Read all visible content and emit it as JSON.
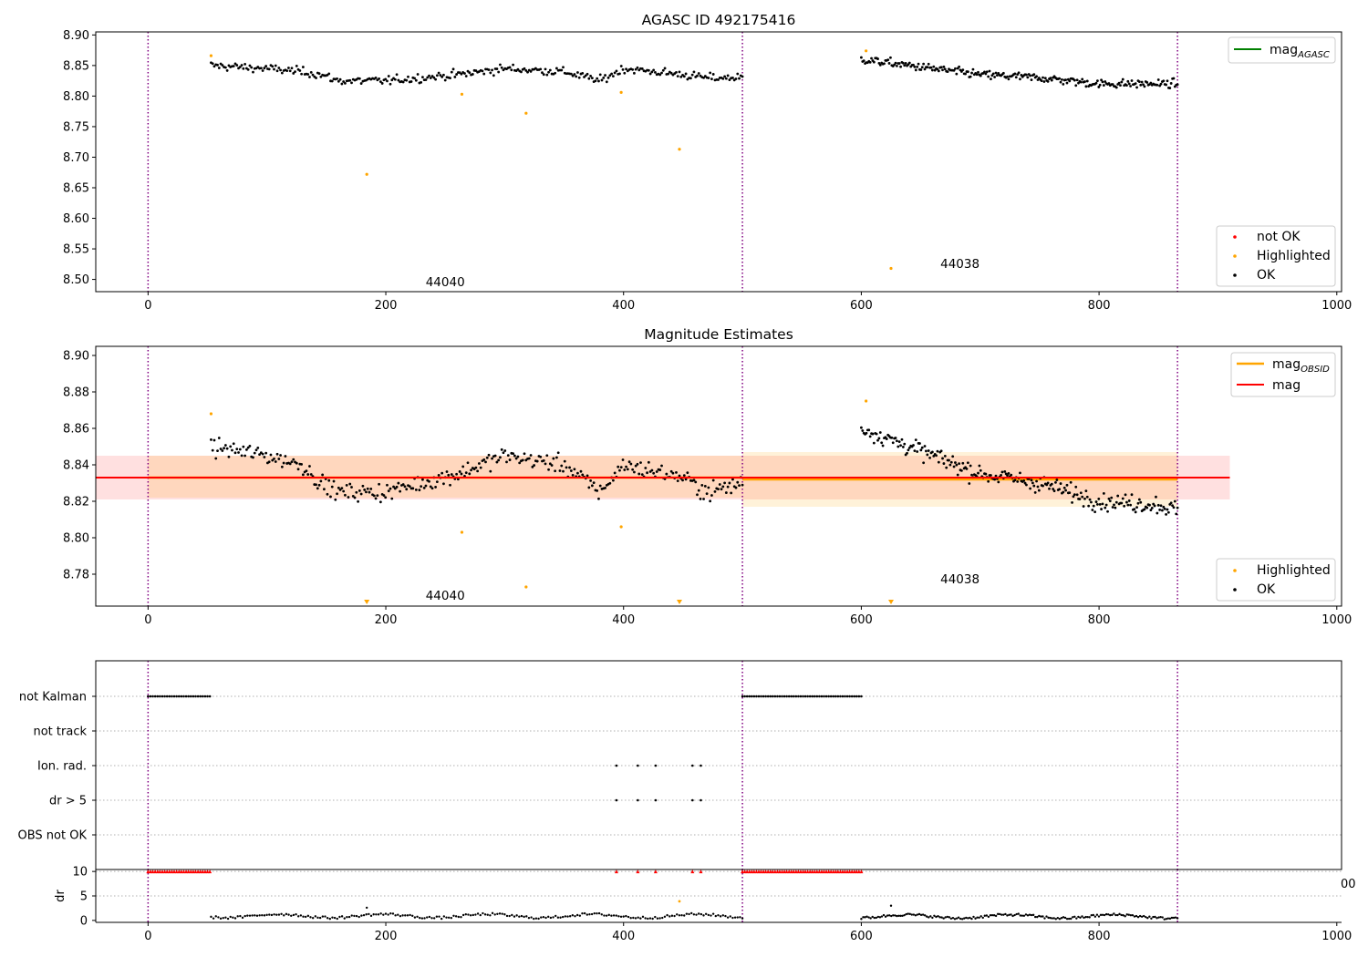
{
  "chart_data": [
    {
      "type": "scatter",
      "title": "AGASC ID 492175416",
      "xlim": [
        -44,
        1004
      ],
      "ylim": [
        8.48,
        8.905
      ],
      "xticks": [
        0,
        200,
        400,
        600,
        800,
        1000
      ],
      "yticks": [
        8.5,
        8.55,
        8.6,
        8.65,
        8.7,
        8.75,
        8.8,
        8.85,
        8.9
      ],
      "ytick_labels": [
        "8.50",
        "8.55",
        "8.60",
        "8.65",
        "8.70",
        "8.75",
        "8.80",
        "8.85",
        "8.90"
      ],
      "obs_boundaries": [
        0,
        500,
        866
      ],
      "obs_labels": [
        {
          "text": "44040",
          "x": 250,
          "y": 8.495
        },
        {
          "text": "44038",
          "x": 683,
          "y": 8.525
        }
      ],
      "line_legend": [
        {
          "name": "mag",
          "sub": "AGASC",
          "color": "#008000"
        }
      ],
      "marker_legend": [
        {
          "name": "not OK",
          "color": "#ff0000"
        },
        {
          "name": "Highlighted",
          "color": "#ffa500"
        },
        {
          "name": "OK",
          "color": "#000000"
        }
      ],
      "series": [
        {
          "name": "OK",
          "color": "#000000",
          "segments": [
            {
              "x_start": 53,
              "x_end": 500,
              "n": 330,
              "level": [
                [
                  53,
                  8.85
                ],
                [
                  100,
                  8.845
                ],
                [
                  130,
                  8.84
                ],
                [
                  145,
                  8.835
                ],
                [
                  160,
                  8.825
                ],
                [
                  200,
                  8.825
                ],
                [
                  260,
                  8.835
                ],
                [
                  300,
                  8.845
                ],
                [
                  350,
                  8.84
                ],
                [
                  380,
                  8.825
                ],
                [
                  400,
                  8.845
                ],
                [
                  450,
                  8.835
                ],
                [
                  470,
                  8.83
                ],
                [
                  500,
                  8.83
                ]
              ],
              "noise": 0.011
            },
            {
              "x_start": 600,
              "x_end": 866,
              "n": 250,
              "level": [
                [
                  600,
                  8.86
                ],
                [
                  620,
                  8.855
                ],
                [
                  660,
                  8.845
                ],
                [
                  680,
                  8.84
                ],
                [
                  700,
                  8.835
                ],
                [
                  750,
                  8.83
                ],
                [
                  800,
                  8.82
                ],
                [
                  850,
                  8.82
                ],
                [
                  866,
                  8.82
                ]
              ],
              "noise": 0.011
            }
          ]
        },
        {
          "name": "Highlighted",
          "color": "#ffa500",
          "points": [
            [
              53,
              8.866
            ],
            [
              184,
              8.672
            ],
            [
              264,
              8.803
            ],
            [
              318,
              8.772
            ],
            [
              398,
              8.806
            ],
            [
              447,
              8.713
            ],
            [
              604,
              8.874
            ],
            [
              625,
              8.518
            ]
          ]
        }
      ]
    },
    {
      "type": "scatter",
      "title": "Magnitude Estimates",
      "xlim": [
        -44,
        1004
      ],
      "ylim": [
        8.7625,
        8.905
      ],
      "xticks": [
        0,
        200,
        400,
        600,
        800,
        1000
      ],
      "yticks": [
        8.78,
        8.8,
        8.82,
        8.84,
        8.86,
        8.88,
        8.9
      ],
      "ytick_labels": [
        "8.78",
        "8.80",
        "8.82",
        "8.84",
        "8.86",
        "8.88",
        "8.90"
      ],
      "obs_boundaries": [
        0,
        500,
        866
      ],
      "obs_labels": [
        {
          "text": "44040",
          "x": 250,
          "y": 8.768
        },
        {
          "text": "44038",
          "x": 683,
          "y": 8.777
        }
      ],
      "mag": 8.833,
      "mag_band": [
        8.821,
        8.845
      ],
      "mag_band_xlim": [
        -44,
        910
      ],
      "mag_obsid": [
        {
          "x_start": 0,
          "x_end": 500,
          "value": 8.833,
          "band": [
            8.822,
            8.845
          ]
        },
        {
          "x_start": 500,
          "x_end": 866,
          "value": 8.832,
          "band": [
            8.817,
            8.847
          ]
        }
      ],
      "line_legend": [
        {
          "name": "mag",
          "sub": "OBSID",
          "color": "#ffa500"
        },
        {
          "name": "mag",
          "sub": "",
          "color": "#ff0000"
        }
      ],
      "marker_legend": [
        {
          "name": "Highlighted",
          "color": "#ffa500"
        },
        {
          "name": "OK",
          "color": "#000000"
        }
      ],
      "series": [
        {
          "name": "OK",
          "color": "#000000",
          "segments": [
            {
              "x_start": 53,
              "x_end": 500,
              "n": 330,
              "level": [
                [
                  53,
                  8.85
                ],
                [
                  100,
                  8.845
                ],
                [
                  130,
                  8.84
                ],
                [
                  145,
                  8.83
                ],
                [
                  160,
                  8.825
                ],
                [
                  200,
                  8.825
                ],
                [
                  260,
                  8.835
                ],
                [
                  300,
                  8.845
                ],
                [
                  350,
                  8.84
                ],
                [
                  380,
                  8.825
                ],
                [
                  400,
                  8.84
                ],
                [
                  450,
                  8.833
                ],
                [
                  470,
                  8.825
                ],
                [
                  500,
                  8.83
                ]
              ],
              "noise": 0.0075
            },
            {
              "x_start": 600,
              "x_end": 866,
              "n": 250,
              "level": [
                [
                  600,
                  8.86
                ],
                [
                  620,
                  8.855
                ],
                [
                  660,
                  8.845
                ],
                [
                  680,
                  8.84
                ],
                [
                  700,
                  8.835
                ],
                [
                  750,
                  8.83
                ],
                [
                  800,
                  8.82
                ],
                [
                  850,
                  8.818
                ],
                [
                  866,
                  8.815
                ]
              ],
              "noise": 0.0075
            }
          ]
        },
        {
          "name": "Highlighted",
          "color": "#ffa500",
          "points": [
            [
              53,
              8.868
            ],
            [
              264,
              8.803
            ],
            [
              318,
              8.773
            ],
            [
              398,
              8.806
            ],
            [
              604,
              8.875
            ]
          ]
        },
        {
          "name": "Highlighted-offscale",
          "color": "#ffa500",
          "marker": "triangle",
          "points": [
            [
              184,
              8.764
            ],
            [
              447,
              8.764
            ],
            [
              625,
              8.764
            ]
          ]
        }
      ]
    },
    {
      "type": "scatter",
      "title": "",
      "xlim": [
        -44,
        1004
      ],
      "xticks": [
        0,
        200,
        400,
        600,
        800,
        1000
      ],
      "obs_boundaries": [
        0,
        500,
        866
      ],
      "flag_rows": [
        "not Kalman",
        "not track",
        "Ion. rad.",
        "dr > 5",
        "OBS not OK"
      ],
      "flag_ranges": [
        {
          "row": "not Kalman",
          "x_start": 0,
          "x_end": 52,
          "n": 27
        },
        {
          "row": "not Kalman",
          "x_start": 500,
          "x_end": 600,
          "n": 52
        }
      ],
      "flag_points": [
        {
          "row": "Ion. rad.",
          "x": [
            394,
            412,
            427,
            458,
            465
          ]
        },
        {
          "row": "dr > 5",
          "x": [
            394,
            412,
            427,
            458,
            465
          ]
        }
      ],
      "dr_ylabel": "dr",
      "dr_yticks": [
        0,
        5,
        10
      ],
      "dr_ytick_labels": [
        "0",
        "5",
        "10"
      ],
      "dr_ylim": [
        -0.4,
        10.4
      ],
      "dr_cap_markers": [
        {
          "x_start": 0,
          "x_end": 52,
          "n": 27,
          "value": 10
        },
        {
          "x_start": 500,
          "x_end": 600,
          "n": 52,
          "value": 10
        },
        {
          "points": [
            394,
            412,
            427,
            458,
            465
          ],
          "value": 10
        }
      ],
      "dr_highlighted": [
        [
          447,
          3.9
        ]
      ],
      "dr_ok": [
        {
          "x_start": 53,
          "x_end": 500,
          "n": 220,
          "base": 0.9,
          "amp": 0.6
        },
        {
          "x_start": 600,
          "x_end": 866,
          "n": 170,
          "base": 0.8,
          "amp": 0.6
        }
      ],
      "dr_ok_points": [
        [
          184,
          2.6
        ],
        [
          625,
          3.0
        ]
      ],
      "overflow_tick_text": "00"
    }
  ]
}
